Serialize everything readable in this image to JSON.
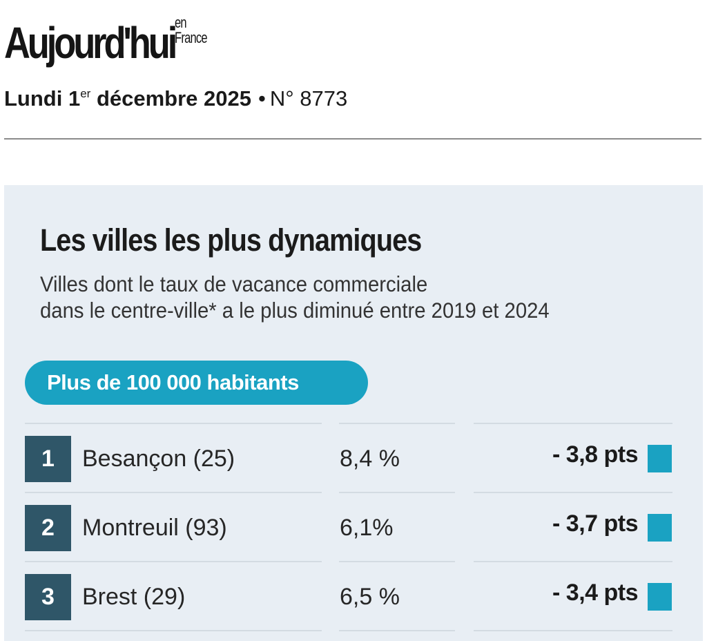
{
  "masthead": {
    "logo_main": "Aujourd'hui",
    "logo_small_line1": "en",
    "logo_small_line2": "France",
    "date_prefix": "Lundi 1",
    "date_sup": "er",
    "date_suffix": " décembre 2025",
    "separator": "•",
    "issue": "N° 8773"
  },
  "infographic": {
    "title": "Les villes les plus dynamiques",
    "subtitle_line1": "Villes dont le taux de vacance commerciale",
    "subtitle_line2": "dans le centre-ville* a le plus diminué entre 2019 et 2024",
    "category_label": "Plus de 100 000 habitants",
    "colors": {
      "accent": "#1aa2c2",
      "rank_box": "#2f5668",
      "panel_bg": "#e8eef4"
    },
    "rows": [
      {
        "rank": "1",
        "city": "Besançon (25)",
        "rate": "8,4 %",
        "change": "- 3,8 pts"
      },
      {
        "rank": "2",
        "city": "Montreuil (93)",
        "rate": "6,1%",
        "change": "- 3,7 pts"
      },
      {
        "rank": "3",
        "city": "Brest (29)",
        "rate": "6,5 %",
        "change": "- 3,4 pts"
      }
    ]
  }
}
